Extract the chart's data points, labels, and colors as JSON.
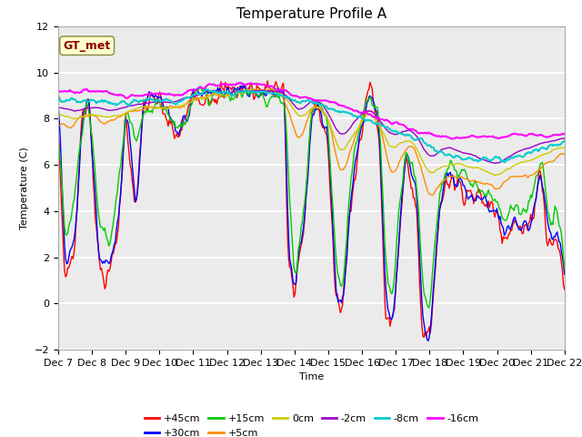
{
  "title": "Temperature Profile A",
  "xlabel": "Time",
  "ylabel": "Temperature (C)",
  "ylim": [
    -2,
    12
  ],
  "annotation": "GT_met",
  "annotation_color": "#8B0000",
  "annotation_bg": "#FFFFCC",
  "colors": {
    "+45cm": "#FF0000",
    "+30cm": "#0000FF",
    "+15cm": "#00CC00",
    "+5cm": "#FF8C00",
    "0cm": "#CCCC00",
    "-2cm": "#9900CC",
    "-8cm": "#00CCCC",
    "-16cm": "#FF00FF"
  },
  "xtick_labels": [
    "Dec 7",
    "Dec 8",
    "Dec 9",
    "Dec 10",
    "Dec 11",
    "Dec 12",
    "Dec 13",
    "Dec 14",
    "Dec 15",
    "Dec 16",
    "Dec 17",
    "Dec 18",
    "Dec 19",
    "Dec 20",
    "Dec 21",
    "Dec 22"
  ],
  "n_points": 480,
  "plot_bg": "#EBEBEB"
}
